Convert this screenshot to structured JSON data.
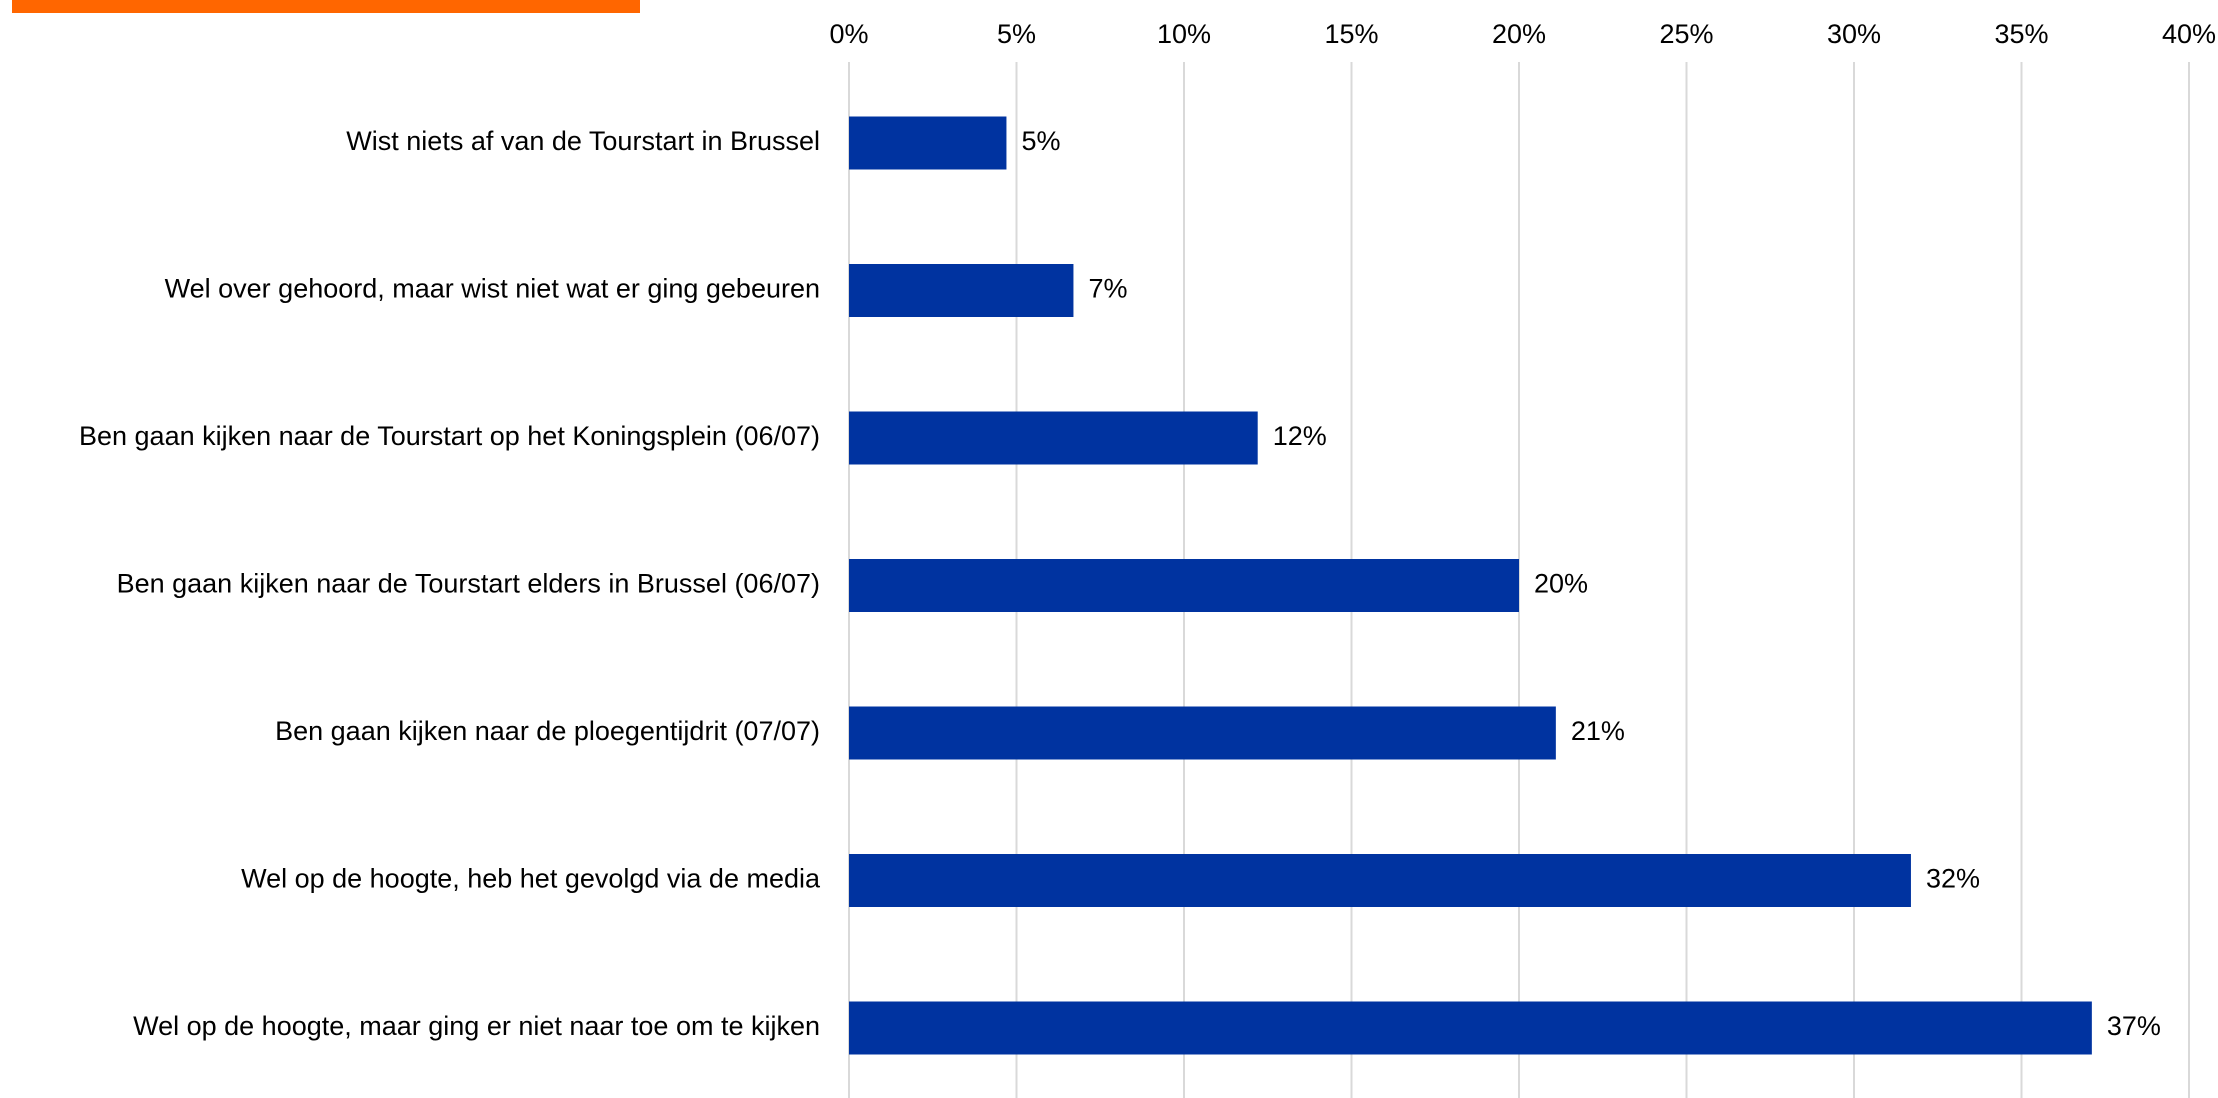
{
  "accent_color": "#ff6600",
  "chart_data": {
    "type": "bar",
    "orientation": "horizontal",
    "categories": [
      "Wist niets af van de Tourstart in Brussel",
      "Wel over gehoord, maar wist niet wat er ging gebeuren",
      "Ben gaan kijken naar de Tourstart op het Koningsplein (06/07)",
      "Ben gaan kijken naar de Tourstart elders in Brussel (06/07)",
      "Ben gaan kijken naar de ploegentijdrit (07/07)",
      "Wel op de hoogte, heb het gevolgd via de media",
      "Wel op de hoogte, maar ging er niet naar toe om te kijken"
    ],
    "values": [
      4.7,
      6.7,
      12.2,
      20.0,
      21.1,
      31.7,
      37.1
    ],
    "data_labels": [
      "5%",
      "7%",
      "12%",
      "20%",
      "21%",
      "32%",
      "37%"
    ],
    "x_ticks": [
      "0%",
      "5%",
      "10%",
      "15%",
      "20%",
      "25%",
      "30%",
      "35%",
      "40%"
    ],
    "xlim": [
      0,
      40
    ],
    "grid": true,
    "axis_position": "top",
    "bar_color": "#0033a0",
    "grid_color": "#d9d9d9"
  }
}
